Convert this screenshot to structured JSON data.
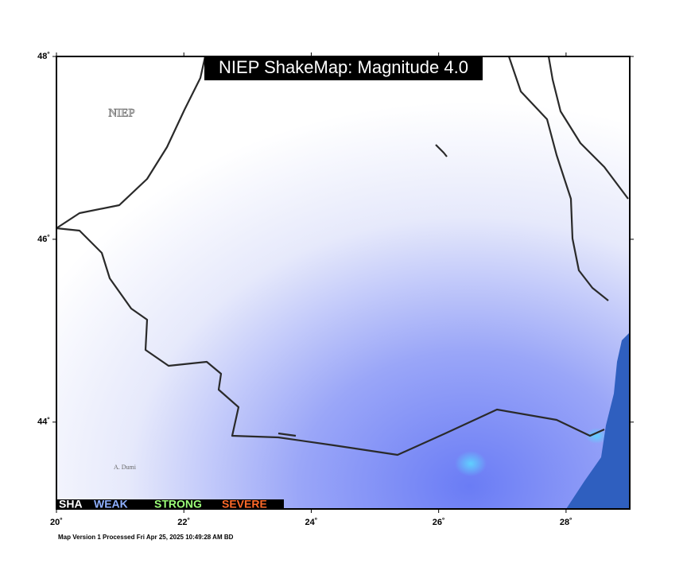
{
  "map": {
    "title": "NIEP ShakeMap: Magnitude 4.0",
    "agency_label": "NIEP",
    "place_label": "A. Dumi",
    "lon_range": [
      20,
      29
    ],
    "lat_range": [
      43.05,
      48
    ],
    "lat_ticks": [
      {
        "value": 48,
        "label": "48˚"
      },
      {
        "value": 46,
        "label": "46˚"
      },
      {
        "value": 44,
        "label": "44˚"
      }
    ],
    "lon_ticks": [
      {
        "value": 20,
        "label": "20˚"
      },
      {
        "value": 22,
        "label": "22˚"
      },
      {
        "value": 24,
        "label": "24˚"
      },
      {
        "value": 26,
        "label": "26˚"
      },
      {
        "value": 28,
        "label": "28˚"
      }
    ],
    "legend": [
      "SHA",
      "WEAK",
      "STRONG",
      "SEVERE"
    ],
    "footer": "Map Version 1 Processed Fri Apr 25, 2025 10:49:28 AM BD"
  }
}
